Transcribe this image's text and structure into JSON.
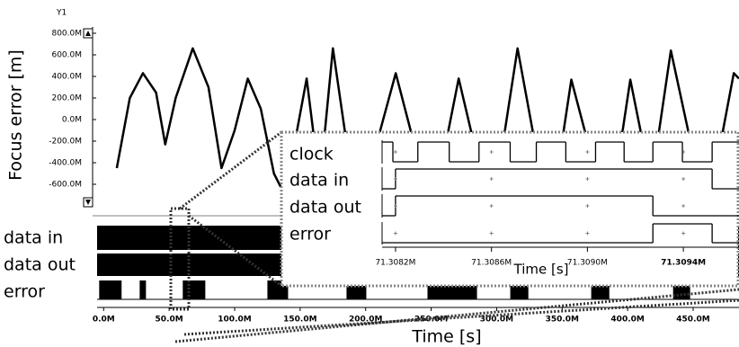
{
  "chart_data": [
    {
      "type": "line",
      "axis_title": "Y1",
      "ylabel": "Focus error [m]",
      "color": "#000000",
      "x": [
        10,
        20,
        30,
        40,
        47,
        55,
        68,
        80,
        90,
        100,
        110,
        120,
        130,
        135,
        140,
        155,
        165,
        175,
        190,
        200,
        223,
        245,
        255,
        271,
        290,
        300,
        316,
        335,
        345,
        357,
        378,
        390,
        402,
        418,
        433,
        455,
        465,
        481,
        485
      ],
      "values": [
        -450,
        200,
        430,
        250,
        -230,
        200,
        660,
        300,
        -450,
        -100,
        380,
        100,
        -500,
        -620,
        -600,
        380,
        -600,
        660,
        -600,
        -600,
        430,
        -600,
        -600,
        380,
        -600,
        -600,
        660,
        -600,
        -600,
        370,
        -600,
        -600,
        370,
        -600,
        640,
        -600,
        -600,
        430,
        380
      ],
      "xlim": [
        -5,
        485
      ],
      "ylim": [
        -750,
        850
      ],
      "yticks": [
        {
          "value": 800,
          "label": "800.0M"
        },
        {
          "value": 600,
          "label": "600.0M"
        },
        {
          "value": 400,
          "label": "400.0M"
        },
        {
          "value": 200,
          "label": "200.0M"
        },
        {
          "value": 0,
          "label": "0.0M"
        },
        {
          "value": -200,
          "label": "-200.0M"
        },
        {
          "value": -400,
          "label": "-400.0M"
        },
        {
          "value": -600,
          "label": "-600.0M"
        }
      ]
    },
    {
      "type": "digital",
      "rows": [
        "data in",
        "data out",
        "error"
      ],
      "xlabel": "Time [s]",
      "error_pulses": {
        "start": [
          -3.4,
          27.5,
          60.4,
          125,
          185.4,
          247.2,
          310.4,
          372.2,
          434.7
        ],
        "end": [
          13.7,
          32.3,
          77.6,
          140.8,
          200.5,
          285,
          324.2,
          386,
          447.7
        ]
      },
      "xlim": [
        -5,
        485
      ],
      "xticks": [
        {
          "value": 0,
          "label": "0.0M"
        },
        {
          "value": 50,
          "label": "50.0M"
        },
        {
          "value": 100,
          "label": "100.0M"
        },
        {
          "value": 150,
          "label": "150.0M"
        },
        {
          "value": 200,
          "label": "200.0M"
        },
        {
          "value": 250,
          "label": "250.0M"
        },
        {
          "value": 300,
          "label": "300.0M"
        },
        {
          "value": 350,
          "label": "350.0M"
        },
        {
          "value": 400,
          "label": "400.0M"
        },
        {
          "value": 450,
          "label": "450.0M"
        }
      ]
    },
    {
      "type": "digital_zoom",
      "xlabel": "Time [s]",
      "xlim": [
        71.308144,
        71.309632
      ],
      "xticks": [
        {
          "value": 71.3082,
          "label": "71.3082M"
        },
        {
          "value": 71.3086,
          "label": "71.3086M"
        },
        {
          "value": 71.309,
          "label": "71.3090M"
        },
        {
          "value": 71.3094,
          "label": "71.3094M"
        }
      ],
      "series": [
        {
          "name": "clock",
          "x": [
            71.308144,
            71.308189,
            71.308293,
            71.308424,
            71.308548,
            71.308678,
            71.308787,
            71.30891,
            71.309034,
            71.309153,
            71.309273,
            71.309396,
            71.30952
          ],
          "values": [
            1,
            0,
            1,
            0,
            1,
            0,
            1,
            0,
            1,
            0,
            1,
            0,
            1
          ]
        },
        {
          "name": "data in",
          "x": [
            71.308144,
            71.3082,
            71.30952
          ],
          "values": [
            0,
            1,
            0
          ]
        },
        {
          "name": "data out",
          "x": [
            71.308144,
            71.3082,
            71.309273
          ],
          "values": [
            0,
            1,
            0
          ]
        },
        {
          "name": "error",
          "x": [
            71.308144,
            71.309273,
            71.30952
          ],
          "values": [
            0,
            1,
            0
          ]
        }
      ]
    }
  ]
}
